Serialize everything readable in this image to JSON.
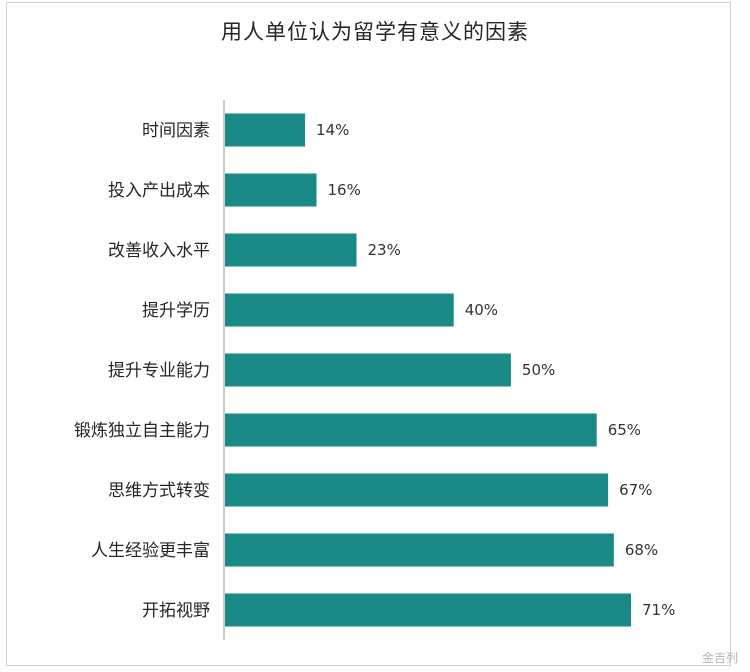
{
  "chart_data": {
    "type": "bar",
    "orientation": "horizontal",
    "title": "用人单位认为留学有意义的因素",
    "categories": [
      "时间因素",
      "投入产出成本",
      "改善收入水平",
      "提升学历",
      "提升专业能力",
      "锻炼独立自主能力",
      "思维方式转变",
      "人生经验更丰富",
      "开拓视野"
    ],
    "values": [
      14,
      16,
      23,
      40,
      50,
      65,
      67,
      68,
      71
    ],
    "value_labels": [
      "14%",
      "16%",
      "23%",
      "40%",
      "50%",
      "65%",
      "67%",
      "68%",
      "71%"
    ],
    "xlim": [
      0,
      80
    ],
    "grid": false,
    "bar_color": "#1a8a86"
  },
  "watermark": "金吉列"
}
